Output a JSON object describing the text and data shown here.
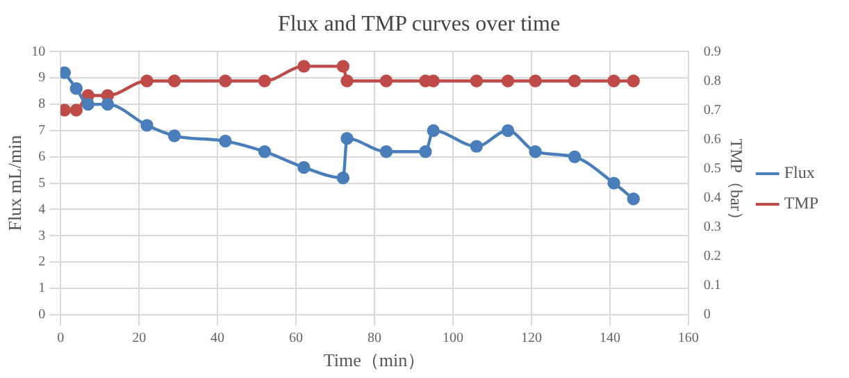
{
  "chart_data": {
    "type": "line",
    "title": "Flux and TMP curves over time",
    "xlabel": "Time（min）",
    "ylabel": "Flux mL/min",
    "y2label": "TMP（bar）",
    "series": [
      {
        "name": "Flux",
        "color": "#4a7ebb",
        "x": [
          1,
          4,
          7,
          12,
          22,
          29,
          42,
          52,
          62,
          72,
          73,
          83,
          93,
          95,
          106,
          114,
          121,
          131,
          141,
          146
        ],
        "values": [
          9.2,
          8.6,
          8.0,
          8.0,
          7.2,
          6.8,
          6.6,
          6.2,
          5.6,
          5.2,
          6.7,
          6.2,
          6.2,
          7.0,
          6.4,
          7.0,
          6.2,
          6.0,
          5.0,
          4.4
        ]
      },
      {
        "name": "TMP",
        "color": "#be4b48",
        "axis": "y2",
        "x": [
          1,
          4,
          7,
          12,
          22,
          29,
          42,
          52,
          62,
          72,
          73,
          83,
          93,
          95,
          106,
          114,
          121,
          131,
          141,
          146
        ],
        "values": [
          0.7,
          0.7,
          0.75,
          0.75,
          0.8,
          0.8,
          0.8,
          0.8,
          0.85,
          0.85,
          0.8,
          0.8,
          0.8,
          0.8,
          0.8,
          0.8,
          0.8,
          0.8,
          0.8,
          0.8
        ]
      }
    ],
    "xlim": [
      0,
      160
    ],
    "xticks": [
      0,
      20,
      40,
      60,
      80,
      100,
      120,
      140,
      160
    ],
    "ylim": [
      0,
      10
    ],
    "yticks": [
      0,
      1,
      2,
      3,
      4,
      5,
      6,
      7,
      8,
      9,
      10
    ],
    "y2lim": [
      0,
      0.9
    ],
    "y2ticks": [
      0,
      0.1,
      0.2,
      0.3,
      0.4,
      0.5,
      0.6,
      0.7,
      0.8,
      0.9
    ],
    "grid": true,
    "legend": "right",
    "marker": "circle",
    "line_style": "solid"
  }
}
